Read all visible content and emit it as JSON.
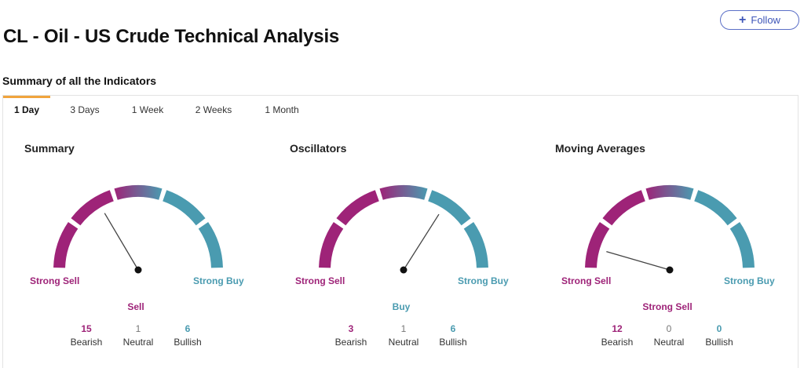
{
  "page": {
    "title": "CL - Oil - US Crude Technical Analysis",
    "follow_label": "Follow",
    "follow_icon": "plus-icon"
  },
  "summary_section": {
    "title": "Summary of all the Indicators"
  },
  "tabs": [
    {
      "label": "1 Day",
      "active": true
    },
    {
      "label": "3 Days",
      "active": false
    },
    {
      "label": "1 Week",
      "active": false
    },
    {
      "label": "2 Weeks",
      "active": false
    },
    {
      "label": "1 Month",
      "active": false
    }
  ],
  "colors": {
    "sell": "#9e2378",
    "buy": "#4a9bb0",
    "accent_tab": "#f0a43c",
    "follow": "#3e56b8"
  },
  "gauges": [
    {
      "title": "Summary",
      "left_label": "Strong Sell",
      "right_label": "Strong Buy",
      "verdict": "Sell",
      "verdict_tone": "sell",
      "needle_level": 0.33,
      "bearish_count": "15",
      "neutral_count": "1",
      "bullish_count": "6",
      "bearish_label": "Bearish",
      "neutral_label": "Neutral",
      "bullish_label": "Bullish"
    },
    {
      "title": "Oscillators",
      "left_label": "Strong Sell",
      "right_label": "Strong Buy",
      "verdict": "Buy",
      "verdict_tone": "buy",
      "needle_level": 0.68,
      "bearish_count": "3",
      "neutral_count": "1",
      "bullish_count": "6",
      "bearish_label": "Bearish",
      "neutral_label": "Neutral",
      "bullish_label": "Bullish"
    },
    {
      "title": "Moving Averages",
      "left_label": "Strong Sell",
      "right_label": "Strong Buy",
      "verdict": "Strong Sell",
      "verdict_tone": "sell",
      "needle_level": 0.09,
      "bearish_count": "12",
      "neutral_count": "0",
      "bullish_count": "0",
      "bearish_label": "Bearish",
      "neutral_label": "Neutral",
      "bullish_label": "Bullish"
    }
  ]
}
